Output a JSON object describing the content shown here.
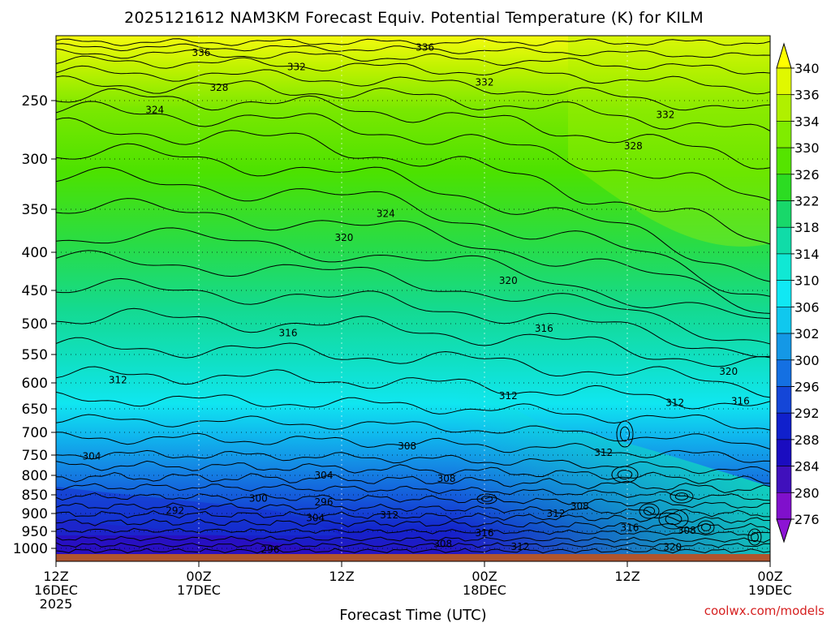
{
  "chart_data": {
    "type": "heatmap",
    "title": "2025121612 NAM3KM Forecast Equiv. Potential Temperature (K) for KILM",
    "xlabel": "Forecast Time (UTC)",
    "ylabel": "",
    "credit": "coolwx.com/models",
    "x_ticks": [
      {
        "hour": 0,
        "line1": "12Z",
        "line2": "16DEC",
        "line3": "2025"
      },
      {
        "hour": 12,
        "line1": "00Z",
        "line2": "17DEC",
        "line3": ""
      },
      {
        "hour": 24,
        "line1": "12Z",
        "line2": "",
        "line3": ""
      },
      {
        "hour": 36,
        "line1": "00Z",
        "line2": "18DEC",
        "line3": ""
      },
      {
        "hour": 48,
        "line1": "12Z",
        "line2": "",
        "line3": ""
      },
      {
        "hour": 60,
        "line1": "00Z",
        "line2": "19DEC",
        "line3": ""
      }
    ],
    "x_range": [
      0,
      60
    ],
    "y_ticks": [
      "250",
      "300",
      "350",
      "400",
      "450",
      "500",
      "550",
      "600",
      "650",
      "700",
      "750",
      "800",
      "850",
      "900",
      "950",
      "1000"
    ],
    "y_range": [
      1020,
      200
    ],
    "colorbar": {
      "levels": [
        "340",
        "336",
        "334",
        "330",
        "326",
        "322",
        "318",
        "314",
        "310",
        "306",
        "302",
        "300",
        "296",
        "292",
        "288",
        "284",
        "280",
        "276"
      ],
      "colors": [
        "#ffff00",
        "#e0f800",
        "#b0f000",
        "#80ec00",
        "#55e400",
        "#2cdc22",
        "#18d86a",
        "#10dca8",
        "#10e8d4",
        "#10e8f4",
        "#10c8ee",
        "#1498e6",
        "#1470e2",
        "#1446d8",
        "#1020cc",
        "#1a0cc0",
        "#4010bc",
        "#8010cc"
      ],
      "bottom_color": "#8c14d4"
    },
    "ground_color": "#b0552e",
    "contour_labels": [
      {
        "text": "336",
        "hour": 12.2,
        "p": 213
      },
      {
        "text": "336",
        "hour": 31.0,
        "p": 209
      },
      {
        "text": "332",
        "hour": 20.2,
        "p": 224
      },
      {
        "text": "332",
        "hour": 36.0,
        "p": 236
      },
      {
        "text": "332",
        "hour": 51.2,
        "p": 262
      },
      {
        "text": "328",
        "hour": 13.7,
        "p": 240
      },
      {
        "text": "328",
        "hour": 48.5,
        "p": 289
      },
      {
        "text": "324",
        "hour": 8.3,
        "p": 258
      },
      {
        "text": "324",
        "hour": 27.7,
        "p": 355
      },
      {
        "text": "320",
        "hour": 24.2,
        "p": 383
      },
      {
        "text": "320",
        "hour": 38.0,
        "p": 437
      },
      {
        "text": "320",
        "hour": 56.5,
        "p": 580
      },
      {
        "text": "316",
        "hour": 19.5,
        "p": 515
      },
      {
        "text": "316",
        "hour": 41.0,
        "p": 508
      },
      {
        "text": "316",
        "hour": 57.5,
        "p": 635
      },
      {
        "text": "316",
        "hour": 36.0,
        "p": 955
      },
      {
        "text": "316",
        "hour": 48.2,
        "p": 940
      },
      {
        "text": "312",
        "hour": 5.2,
        "p": 595
      },
      {
        "text": "312",
        "hour": 38.0,
        "p": 625
      },
      {
        "text": "312",
        "hour": 52.0,
        "p": 638
      },
      {
        "text": "312",
        "hour": 46.0,
        "p": 745
      },
      {
        "text": "312",
        "hour": 28.0,
        "p": 905
      },
      {
        "text": "312",
        "hour": 42.0,
        "p": 900
      },
      {
        "text": "312",
        "hour": 39.0,
        "p": 995
      },
      {
        "text": "308",
        "hour": 29.5,
        "p": 730
      },
      {
        "text": "308",
        "hour": 32.8,
        "p": 808
      },
      {
        "text": "308",
        "hour": 44.0,
        "p": 880
      },
      {
        "text": "308",
        "hour": 32.5,
        "p": 987
      },
      {
        "text": "308",
        "hour": 53.0,
        "p": 948
      },
      {
        "text": "304",
        "hour": 3.0,
        "p": 753
      },
      {
        "text": "304",
        "hour": 22.5,
        "p": 800
      },
      {
        "text": "304",
        "hour": 21.8,
        "p": 913
      },
      {
        "text": "300",
        "hour": 17.0,
        "p": 860
      },
      {
        "text": "296",
        "hour": 22.5,
        "p": 870
      },
      {
        "text": "296",
        "hour": 18.0,
        "p": 1003
      },
      {
        "text": "292",
        "hour": 10.0,
        "p": 892
      },
      {
        "text": "320",
        "hour": 51.8,
        "p": 997
      }
    ]
  }
}
